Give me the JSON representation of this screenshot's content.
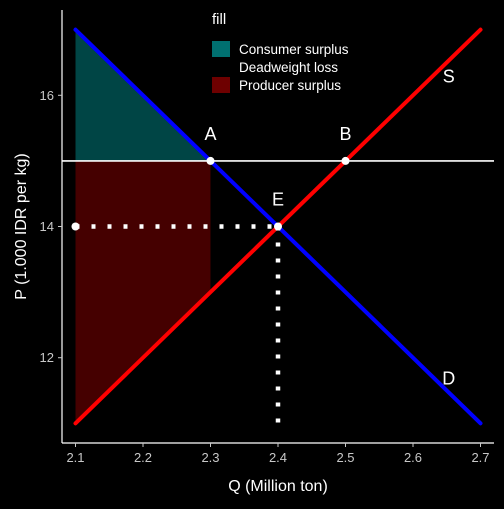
{
  "chart_data": {
    "type": "line",
    "xlabel": "Q (Million ton)",
    "ylabel": "P (1.000 IDR per kg)",
    "xlim": [
      2.08,
      2.72
    ],
    "ylim": [
      10.7,
      17.3
    ],
    "x_ticks": [
      2.1,
      2.2,
      2.3,
      2.4,
      2.5,
      2.6,
      2.7
    ],
    "x_tick_labels": [
      "2.1",
      "2.2",
      "2.3",
      "2.4",
      "2.5",
      "2.6",
      "2.7"
    ],
    "y_ticks": [
      12,
      14,
      16
    ],
    "y_tick_labels": [
      "12",
      "14",
      "16"
    ],
    "grid": false,
    "series": [
      {
        "name": "D",
        "color": "#0000ff",
        "x": [
          2.1,
          2.7
        ],
        "y": [
          17,
          11
        ]
      },
      {
        "name": "S",
        "color": "#ff0000",
        "x": [
          2.1,
          2.7
        ],
        "y": [
          11,
          17
        ]
      }
    ],
    "areas": [
      {
        "fill_key": "consumer",
        "color": "#004545",
        "points": [
          [
            2.1,
            17
          ],
          [
            2.3,
            15
          ],
          [
            2.1,
            15
          ]
        ]
      },
      {
        "fill_key": "producer",
        "color": "#450000",
        "points": [
          [
            2.1,
            15
          ],
          [
            2.3,
            15
          ],
          [
            2.3,
            13
          ],
          [
            2.1,
            11
          ]
        ]
      }
    ],
    "hline": {
      "y": 15,
      "color": "#ffffff"
    },
    "dotted": [
      {
        "x": [
          2.1,
          2.4
        ],
        "y": [
          14,
          14
        ]
      },
      {
        "x": [
          2.4,
          2.4
        ],
        "y": [
          14,
          11
        ]
      }
    ],
    "points": [
      {
        "label": "A",
        "x": 2.3,
        "y": 15
      },
      {
        "label": "B",
        "x": 2.5,
        "y": 15
      },
      {
        "label": "E",
        "x": 2.4,
        "y": 14
      },
      {
        "label": "",
        "x": 2.1,
        "y": 14
      }
    ],
    "curve_labels": [
      {
        "text": "S",
        "x": 2.65,
        "y": 16.3
      },
      {
        "text": "D",
        "x": 2.65,
        "y": 11.7
      }
    ],
    "legend": {
      "title": "fill",
      "position": "top",
      "items": [
        {
          "label": "Consumer surplus",
          "color": "#007070"
        },
        {
          "label": "Deadweight loss",
          "color": ""
        },
        {
          "label": "Producer surplus",
          "color": "#6e0000"
        }
      ]
    }
  }
}
